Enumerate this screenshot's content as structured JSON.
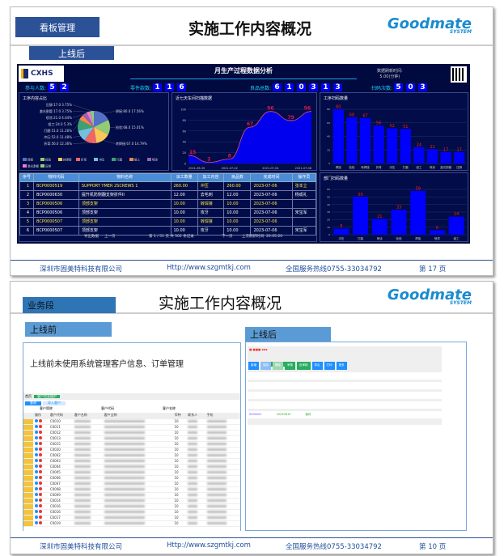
{
  "slide1": {
    "tag": "看板管理",
    "title": "实施工作内容概况",
    "logo": {
      "text": "Goodmate",
      "sub": "SYSTEM"
    },
    "section": "上线后",
    "dashboard": {
      "brand": "CXHS",
      "title": "月生产过程数据分析",
      "refresh_label": "数据刷新时间:",
      "refresh_value": "5.00(分钟)",
      "kpis": [
        {
          "label": "参与人数:",
          "digits": [
            "5",
            "2"
          ]
        },
        {
          "label": "零件款数:",
          "digits": [
            "1",
            "1",
            "6"
          ]
        },
        {
          "label": "良品总数:",
          "digits": [
            "6",
            "1",
            "0",
            "3",
            "1",
            "3"
          ]
        },
        {
          "label": "扫码次数:",
          "digits": [
            "5",
            "0",
            "3"
          ]
        }
      ],
      "table": {
        "headers": [
          "序号",
          "物料代码",
          "物料名称",
          "派工数量",
          "加工内容",
          "良品数",
          "完成时间",
          "操作员"
        ],
        "rows": [
          [
            "1",
            "BCP0000519",
            "SUPPORT YMER 2SCREWS 1",
            "260.00",
            "冲压",
            "260.00",
            "2023-07-06",
            "张本立"
          ],
          [
            "2",
            "BCP0000630",
            "提升机防侧翻支架折件II",
            "12.00",
            "去毛刺",
            "12.00",
            "2023-07-06",
            "杨成礼"
          ],
          [
            "3",
            "BCP0000506",
            "顶部支架",
            "10.00",
            "转焊接",
            "10.00",
            "2023-07-06",
            ""
          ],
          [
            "4",
            "BCP0000506",
            "顶部支架",
            "10.00",
            "攻牙",
            "10.00",
            "2023-07-06",
            "宋宝军"
          ],
          [
            "5",
            "BCP0000507",
            "顶部支架",
            "10.00",
            "转焊接",
            "10.00",
            "2023-07-06",
            ""
          ],
          [
            "6",
            "BCP0000507",
            "顶部支架",
            "10.00",
            "攻牙",
            "10.00",
            "2023-07-06",
            "宋宝军"
          ]
        ],
        "pager": {
          "export": "导出数据",
          "prev": "上一页",
          "info": "第 1 / 51 页 共 502 条记录",
          "next": "下一页",
          "last_refresh": "上次刷新时间: 20:05:20"
        }
      }
    },
    "footer": {
      "company": "深圳市固美特科技有限公司",
      "url": "Http://www.szgmtkj.com",
      "hotline": "全国服务热线0755-33034792",
      "page": "第  17  页"
    }
  },
  "chart_data": [
    {
      "type": "pie",
      "title": "工序内容占比",
      "slices": [
        {
          "label": "焊接",
          "value": 80,
          "pct": "17.56%",
          "color": "#5470c6"
        },
        {
          "label": "检验",
          "value": 68,
          "pct": "15.01%",
          "color": "#91cc75"
        },
        {
          "label": "转焊接",
          "value": 67,
          "pct": "14.79%",
          "color": "#fac858"
        },
        {
          "label": "折弯",
          "value": 56,
          "pct": "12.36%",
          "color": "#ee6666"
        },
        {
          "label": "冲压",
          "value": 52,
          "pct": "11.48%",
          "color": "#73c0de"
        },
        {
          "label": "打磨",
          "value": 51,
          "pct": "11.26%",
          "color": "#3ba272"
        },
        {
          "label": "组工",
          "value": 24,
          "pct": "5.3%",
          "color": "#fc8452"
        },
        {
          "label": "喷涂",
          "value": 21,
          "pct": "4.64%",
          "color": "#9a60b4"
        },
        {
          "label": "激光割管",
          "value": 17,
          "pct": "3.75%",
          "color": "#ea7ccc"
        },
        {
          "label": "压铆",
          "value": 17,
          "pct": "3.75%",
          "color": "#91cc75"
        }
      ],
      "legend": "bottom"
    },
    {
      "type": "area",
      "title": "近七天车间扫描数据",
      "x": [
        "2021-06-30",
        "2021-07-01",
        "2021-07-02",
        "2021-07-03",
        "2021-07-04",
        "2021-07-05",
        "2021-07-06"
      ],
      "xticks": [
        "2021-06-30",
        "2021-07-02",
        "2021-07-04",
        "2021-07-06"
      ],
      "values": [
        15,
        2,
        8,
        67,
        96,
        79,
        96
      ],
      "ylim": [
        0,
        100
      ],
      "yticks": [
        0,
        20,
        40,
        60,
        80,
        100
      ],
      "color": "#0000ee",
      "line": "#e2546f",
      "label_color": "#e0154f"
    },
    {
      "type": "bar",
      "title": "工序扫码数量",
      "categories": [
        "焊接",
        "检验",
        "转焊接",
        "折弯",
        "冲压",
        "打磨",
        "组工",
        "喷涂",
        "激光割管",
        "压铆"
      ],
      "values": [
        80,
        68,
        67,
        56,
        52,
        51,
        24,
        21,
        17,
        17
      ],
      "ylim": [
        0,
        80
      ],
      "yticks": [
        0,
        20,
        40,
        60,
        80
      ],
      "color": "#0000ff",
      "label_color": "#ff1a1a"
    },
    {
      "type": "bar",
      "title": "部门扫码数量",
      "categories": [
        "冲压",
        "打磨",
        "喷涂",
        "检验",
        "焊接",
        "喷漆",
        "组工"
      ],
      "values": [
        8,
        50,
        21,
        33,
        58,
        6,
        24
      ],
      "ylim": [
        0,
        60
      ],
      "yticks": [
        0,
        10,
        20,
        30,
        40,
        50,
        60
      ],
      "color": "#0000ff",
      "label_color": "#ff1a1a"
    }
  ],
  "slide2": {
    "tag": "业务段",
    "title": "实施工作内容概况",
    "logo": {
      "text": "Goodmate",
      "sub": "SYSTEM"
    },
    "before": {
      "label": "上线前",
      "text": "上线前未使用系统管理客户信息、订单管理",
      "shot": {
        "tabs": [
          "首页",
          "客户信息维护"
        ],
        "buttons": [
          "查询",
          "导入客户"
        ],
        "filters": [
          "客户简称",
          "客户代码",
          "客户名称"
        ],
        "headers": [
          "",
          "操作",
          "客户代码",
          "客户名称",
          "客户全称",
          "币种",
          "联系人",
          "手机"
        ],
        "codes": [
          "C0010",
          "C0011",
          "C0012",
          "C0013",
          "C0015",
          "C0020",
          "C0002",
          "C0003",
          "C0004",
          "C0005",
          "C0006",
          "C0007",
          "C0008",
          "C0009",
          "C0014",
          "C0016",
          "C0016",
          "C0017",
          "C0019"
        ],
        "currency": "10"
      }
    },
    "after": {
      "label": "上线后",
      "shot": {
        "buttons": [
          "新增",
          "保存",
          "删除",
          "审核",
          "反审核",
          "导出",
          "打印",
          "更多"
        ],
        "row": [
          "0000001",
          "20230619",
          "保存"
        ]
      }
    },
    "footer": {
      "company": "深圳市固美特科技有限公司",
      "url": "Http://www.szgmtkj.com",
      "hotline": "全国服务热线0755-33034792",
      "page": "第  10  页"
    }
  }
}
